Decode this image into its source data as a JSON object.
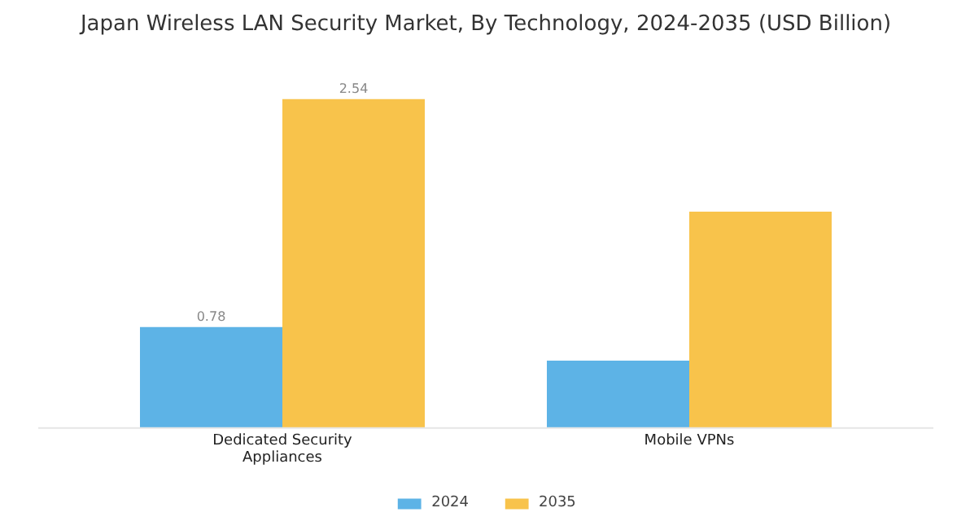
{
  "chart_data": {
    "type": "bar",
    "title": "Japan Wireless LAN Security Market, By Technology, 2024-2035 (USD Billion)",
    "categories": [
      "Dedicated Security Appliances",
      "Mobile VPNs"
    ],
    "series": [
      {
        "name": "2024",
        "color": "#5db3e6",
        "values": [
          0.78,
          0.52
        ],
        "value_labels": [
          "0.78",
          null
        ]
      },
      {
        "name": "2035",
        "color": "#f8c34b",
        "values": [
          2.54,
          1.67
        ],
        "value_labels": [
          "2.54",
          null
        ]
      }
    ],
    "legend": "bottom",
    "grid": false
  }
}
